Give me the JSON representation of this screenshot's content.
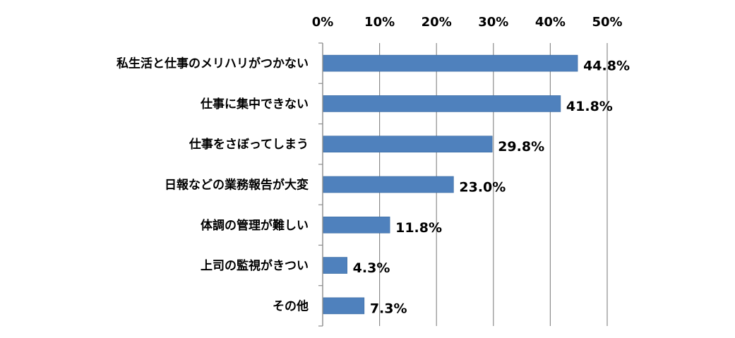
{
  "chart_data": {
    "type": "bar",
    "orientation": "horizontal",
    "categories": [
      "私生活と仕事のメリハリがつかない",
      "仕事に集中できない",
      "仕事をさぼってしまう",
      "日報などの業務報告が大変",
      "体調の管理が難しい",
      "上司の監視がきつい",
      "その他"
    ],
    "values": [
      44.8,
      41.8,
      29.8,
      23.0,
      11.8,
      4.3,
      7.3
    ],
    "value_labels": [
      "44.8%",
      "41.8%",
      "29.8%",
      "23.0%",
      "11.8%",
      "4.3%",
      "7.3%"
    ],
    "xlim": [
      0,
      50
    ],
    "xticks": [
      0,
      10,
      20,
      30,
      40,
      50
    ],
    "xtick_labels": [
      "0%",
      "10%",
      "20%",
      "30%",
      "40%",
      "50%"
    ],
    "x_axis_position": "top",
    "grid": true,
    "title": "",
    "xlabel": "",
    "ylabel": "",
    "colors": {
      "bar": "#4f81bd",
      "bar_edge": "#3a6aa0",
      "grid": "#8c8c8c",
      "axis": "#8c8c8c",
      "text": "#000000"
    }
  }
}
